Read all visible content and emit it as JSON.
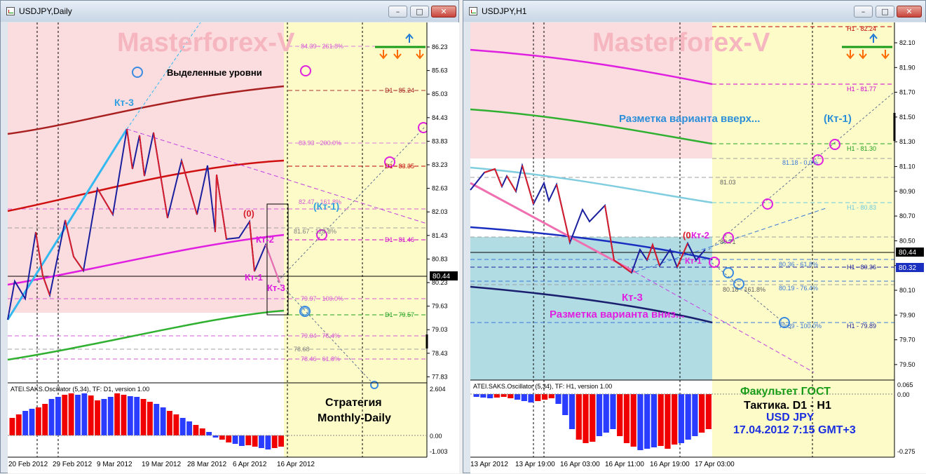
{
  "left": {
    "title": "USDJPY,Daily",
    "watermark": "Masterforex-V",
    "highlight_text": "Выделенные уровни",
    "strategy_line1": "Стратегия",
    "strategy_line2": "Monthly-Daily",
    "osc_label": "ATEI.SAKS.Oscillator (5,34), TF: D1, version 1.00",
    "price_labels": [
      "86.23",
      "85.63",
      "85.03",
      "84.43",
      "83.83",
      "83.23",
      "82.63",
      "82.03",
      "81.43",
      "80.83",
      "80.23",
      "79.63",
      "79.03",
      "78.43",
      "77.83"
    ],
    "current_price": "80.44",
    "osc_labels": [
      "2.604",
      "0.00",
      "-1.003"
    ],
    "x_labels": [
      "20 Feb 2012",
      "29 Feb 2012",
      "9 Mar 2012",
      "19 Mar 2012",
      "28 Mar 2012",
      "6 Apr 2012",
      "16 Apr 2012"
    ],
    "level_labels": {
      "fib261": "84.39 - 261.8%",
      "d1_8524": "D1 - 85.24",
      "fib200": "83.93 - 200.0%",
      "d1_8335": "D1 - 83.35",
      "fib1618a": "82.47 - 161.8%",
      "fib1288": "81.67 - 128.8%",
      "d1_8146": "D1 - 81.46",
      "fib100": "79.97 - 100.0%",
      "d1_7957": "D1 - 79.57",
      "fib764": "79.04 - 76.4%",
      "lvl7868": "78.68",
      "fib618": "78.46 - 61.8%"
    },
    "wave_labels": {
      "kt3_top": "Кт-3",
      "kt1_paren": "(Кт-1)",
      "zero": "(0)",
      "kt2": "Кт-2",
      "kt1": "Кт-1",
      "kt3_bot": "Кт-3"
    }
  },
  "right": {
    "title": "USDJPY,H1",
    "watermark": "Masterforex-V",
    "up_text": "Разметка варианта вверх...",
    "up_kt1": "(Кт-1)",
    "down_kt3": "Кт-3",
    "down_text": "Разметка варианта вниз...",
    "osc_label": "ATEI.SAKS.Oscillator (5,34), TF: H1, version 1.00",
    "price_labels": [
      "82.10",
      "81.90",
      "81.70",
      "81.50",
      "81.30",
      "81.10",
      "80.90",
      "80.70",
      "80.50",
      "80.30",
      "80.10",
      "79.90",
      "79.70",
      "79.50"
    ],
    "current_price": "80.44",
    "second_price": "80.32",
    "osc_labels": [
      "0.065",
      "0.00",
      "-0.275"
    ],
    "x_labels": [
      "13 Apr 2012",
      "13 Apr 19:00",
      "16 Apr 03:00",
      "16 Apr 11:00",
      "16 Apr 19:00",
      "17 Apr 03:00"
    ],
    "level_labels": {
      "h1_8224": "H1 - 82.24",
      "h1_8177": "H1 - 81.77",
      "h1_8130": "H1 - 81.30",
      "fib1618": "81.18 - 0.0%",
      "lvl8103": "81.03",
      "h1_8083": "H1 - 80.83",
      "lvl8071": "80.71",
      "lvl8036": "80.36 - 61.8%",
      "h1_8036": "H1 - 80.36",
      "fib1618b": "80.18 - 161.8%",
      "fib764": "80.19 - 76.4%",
      "fib100": "79.89 - 100.0%",
      "h1_7989": "H1 - 79.89"
    },
    "wave_labels": {
      "zero": "(0",
      "kt2": "Кт-2",
      "kt1": "Кт-1"
    },
    "info_line1": "Факультет ГОСТ",
    "info_line2": "Тактика. D1 - H1",
    "info_line3": "USD JPY",
    "info_line4": "17.04.2012 7:15 GMT+3"
  },
  "colors": {
    "pink_zone": "#fbdde0",
    "yellow_zone": "#fdfbc8",
    "blue_zone": "#b2dce4",
    "candle_red": "#d81e2a",
    "candle_blue": "#1a1f9e",
    "watermark": "#f6b6bf",
    "osc_red": "#f00000",
    "osc_blue": "#2a3cff"
  }
}
